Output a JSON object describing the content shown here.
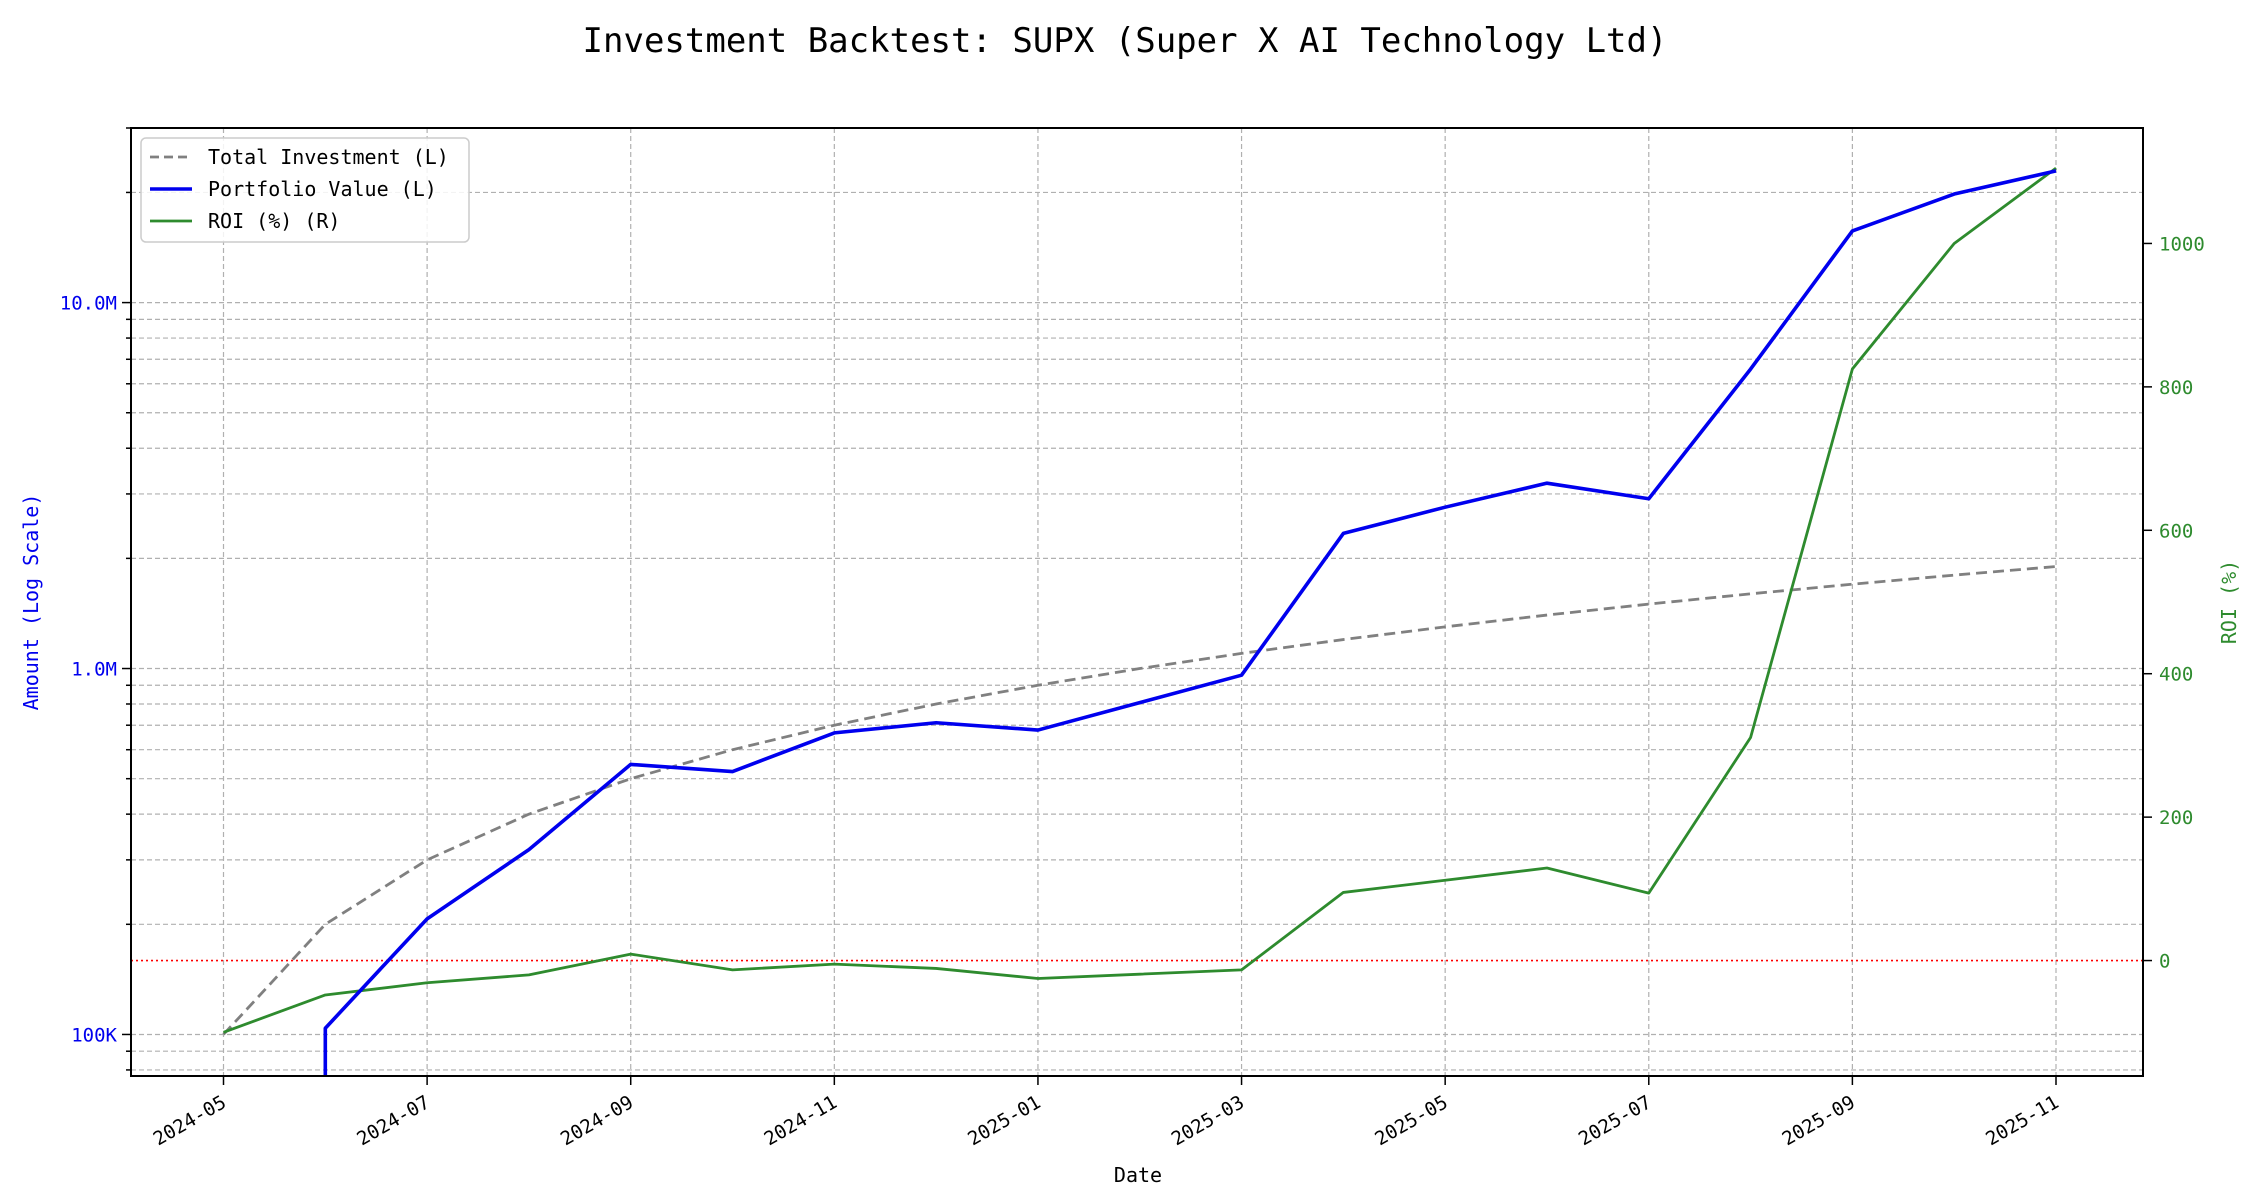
{
  "chart_data": {
    "type": "line",
    "title": "Investment Backtest: SUPX (Super X AI Technology Ltd)",
    "xlabel": "Date",
    "ylabel_left": "Amount (Log Scale)",
    "ylabel_right": "ROI (%)",
    "x": [
      "2024-05",
      "2024-06",
      "2024-07",
      "2024-08",
      "2024-09",
      "2024-10",
      "2024-11",
      "2024-12",
      "2025-01",
      "2025-02",
      "2025-03",
      "2025-04",
      "2025-05",
      "2025-06",
      "2025-07",
      "2025-08",
      "2025-09",
      "2025-10",
      "2025-11"
    ],
    "x_tick_labels": [
      "2024-05",
      "2024-07",
      "2024-09",
      "2024-11",
      "2025-01",
      "2025-03",
      "2025-05",
      "2025-07",
      "2025-09",
      "2025-11"
    ],
    "series": [
      {
        "name": "Total Investment (L)",
        "axis": "left",
        "style": "dashed",
        "color": "#808080",
        "values": [
          100000,
          200000,
          300000,
          400000,
          500000,
          600000,
          700000,
          800000,
          900000,
          1000000,
          1100000,
          1200000,
          1300000,
          1400000,
          1500000,
          1600000,
          1700000,
          1800000,
          1900000
        ]
      },
      {
        "name": "Portfolio Value (L)",
        "axis": "left",
        "style": "solid",
        "color": "#0000ee",
        "values": [
          0,
          104000,
          207000,
          320000,
          547000,
          523000,
          667000,
          711000,
          679000,
          807000,
          959000,
          2340000,
          2760000,
          3210000,
          2910000,
          6580000,
          15700000,
          19800000,
          22900000
        ]
      },
      {
        "name": "ROI (%) (R)",
        "axis": "right",
        "style": "solid",
        "color": "#2e8b2e",
        "values": [
          -100,
          -48,
          -31,
          -20,
          9,
          -13,
          -5,
          -11,
          -25,
          -19,
          -13,
          95,
          112,
          129,
          94,
          311,
          825,
          1000,
          1105
        ]
      }
    ],
    "left_axis": {
      "scale": "log",
      "ylim": [
        77000,
        30000000
      ],
      "tick_labels": [
        "100K",
        "1.0M",
        "10.0M"
      ],
      "ticks": [
        100000,
        1000000,
        10000000
      ],
      "color": "#0000ee"
    },
    "right_axis": {
      "ylim": [
        -161,
        1161
      ],
      "ticks": [
        0,
        200,
        400,
        600,
        800,
        1000
      ],
      "tick_labels": [
        "0",
        "200",
        "400",
        "600",
        "800",
        "1000"
      ],
      "color": "#2e8b2e"
    },
    "reference_line": {
      "axis": "right",
      "value": 0,
      "color": "#ff0000",
      "style": "dotted"
    },
    "grid": true,
    "legend_position": "top-left"
  }
}
